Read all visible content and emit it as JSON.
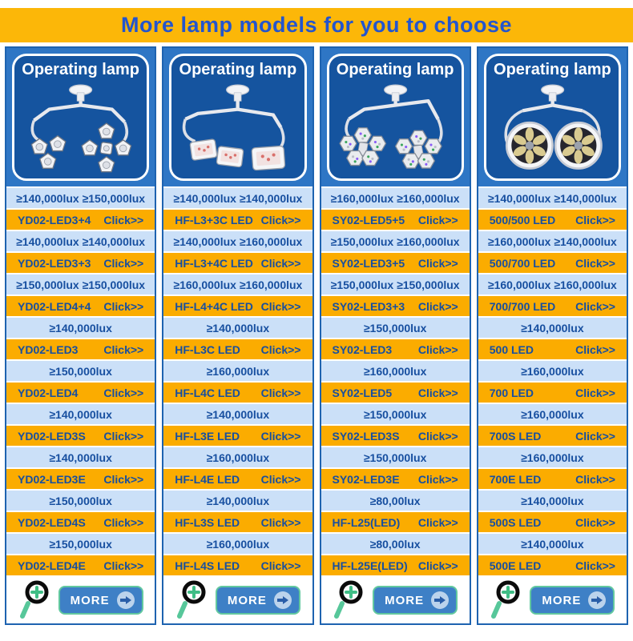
{
  "banner": {
    "title": "More lamp models for you to choose"
  },
  "colors": {
    "banner_bg": "#FCB708",
    "banner_text": "#2355CE",
    "row_orange": "#FBAC00",
    "row_light_blue": "#CBE0F8",
    "row_text_blue": "#174FA0",
    "panel_dark_blue": "#15549F",
    "panel_frame_blue": "#2E76C5",
    "card_border_blue": "#1E63B0",
    "more_button_bg": "#3E80C6",
    "more_button_border": "#62C89F"
  },
  "icons": {
    "magnifier": "magnifier-plus-icon",
    "more_arrow": "arrow-right-icon"
  },
  "columns": [
    {
      "header": "Operating lamp",
      "illustration": "dual-pentagon-head-lamp-icon",
      "more_label": "MORE",
      "rows": [
        {
          "type": "spec",
          "text": "≥140,000lux ≥150,000lux"
        },
        {
          "type": "model",
          "model": "YD02-LED3+4",
          "link": "Click>>"
        },
        {
          "type": "spec",
          "text": "≥140,000lux ≥140,000lux"
        },
        {
          "type": "model",
          "model": "YD02-LED3+3",
          "link": "Click>>"
        },
        {
          "type": "spec",
          "text": "≥150,000lux ≥150,000lux"
        },
        {
          "type": "model",
          "model": "YD02-LED4+4",
          "link": "Click>>"
        },
        {
          "type": "spec",
          "text": "≥140,000lux"
        },
        {
          "type": "model",
          "model": "YD02-LED3",
          "link": "Click>>"
        },
        {
          "type": "spec",
          "text": "≥150,000lux"
        },
        {
          "type": "model",
          "model": "YD02-LED4",
          "link": "Click>>"
        },
        {
          "type": "spec",
          "text": "≥140,000lux"
        },
        {
          "type": "model",
          "model": "YD02-LED3S",
          "link": "Click>>"
        },
        {
          "type": "spec",
          "text": "≥140,000lux"
        },
        {
          "type": "model",
          "model": "YD02-LED3E",
          "link": "Click>>"
        },
        {
          "type": "spec",
          "text": "≥150,000lux"
        },
        {
          "type": "model",
          "model": "YD02-LED4S",
          "link": "Click>>"
        },
        {
          "type": "spec",
          "text": "≥150,000lux"
        },
        {
          "type": "model",
          "model": "YD02-LED4E",
          "link": "Click>>"
        }
      ]
    },
    {
      "header": "Operating lamp",
      "illustration": "dual-square-head-lamp-icon",
      "more_label": "MORE",
      "rows": [
        {
          "type": "spec",
          "text": "≥140,000lux ≥140,000lux"
        },
        {
          "type": "model",
          "model": "HF-L3+3C LED",
          "link": "Click>>"
        },
        {
          "type": "spec",
          "text": "≥140,000lux ≥160,000lux"
        },
        {
          "type": "model",
          "model": "HF-L3+4C LED",
          "link": "Click>>"
        },
        {
          "type": "spec",
          "text": "≥160,000lux ≥160,000lux"
        },
        {
          "type": "model",
          "model": "HF-L4+4C LED",
          "link": "Click>>"
        },
        {
          "type": "spec",
          "text": "≥140,000lux"
        },
        {
          "type": "model",
          "model": "HF-L3C LED",
          "link": "Click>>"
        },
        {
          "type": "spec",
          "text": "≥160,000lux"
        },
        {
          "type": "model",
          "model": "HF-L4C LED",
          "link": "Click>>"
        },
        {
          "type": "spec",
          "text": "≥140,000lux"
        },
        {
          "type": "model",
          "model": "HF-L3E LED",
          "link": "Click>>"
        },
        {
          "type": "spec",
          "text": "≥160,000lux"
        },
        {
          "type": "model",
          "model": "HF-L4E LED",
          "link": "Click>>"
        },
        {
          "type": "spec",
          "text": "≥140,000lux"
        },
        {
          "type": "model",
          "model": "HF-L3S LED",
          "link": "Click>>"
        },
        {
          "type": "spec",
          "text": "≥160,000lux"
        },
        {
          "type": "model",
          "model": "HF-L4S LED",
          "link": "Click>>"
        }
      ]
    },
    {
      "header": "Operating lamp",
      "illustration": "dual-hexagon-cluster-lamp-icon",
      "more_label": "MORE",
      "rows": [
        {
          "type": "spec",
          "text": "≥160,000lux ≥160,000lux"
        },
        {
          "type": "model",
          "model": "SY02-LED5+5",
          "link": "Click>>"
        },
        {
          "type": "spec",
          "text": "≥150,000lux ≥160,000lux"
        },
        {
          "type": "model",
          "model": "SY02-LED3+5",
          "link": "Click>>"
        },
        {
          "type": "spec",
          "text": "≥150,000lux ≥150,000lux"
        },
        {
          "type": "model",
          "model": "SY02-LED3+3",
          "link": "Click>>"
        },
        {
          "type": "spec",
          "text": "≥150,000lux"
        },
        {
          "type": "model",
          "model": "SY02-LED3",
          "link": "Click>>"
        },
        {
          "type": "spec",
          "text": "≥160,000lux"
        },
        {
          "type": "model",
          "model": "SY02-LED5",
          "link": "Click>>"
        },
        {
          "type": "spec",
          "text": "≥150,000lux"
        },
        {
          "type": "model",
          "model": "SY02-LED3S",
          "link": "Click>>"
        },
        {
          "type": "spec",
          "text": "≥150,000lux"
        },
        {
          "type": "model",
          "model": "SY02-LED3E",
          "link": "Click>>"
        },
        {
          "type": "spec",
          "text": "≥80,00lux"
        },
        {
          "type": "model",
          "model": "HF-L25(LED)",
          "link": "Click>>"
        },
        {
          "type": "spec",
          "text": "≥80,00lux"
        },
        {
          "type": "model",
          "model": "HF-L25E(LED)",
          "link": "Click>>"
        }
      ]
    },
    {
      "header": "Operating lamp",
      "illustration": "dual-round-dome-lamp-icon",
      "more_label": "MORE",
      "rows": [
        {
          "type": "spec",
          "text": "≥140,000lux ≥140,000lux"
        },
        {
          "type": "model",
          "model": "500/500 LED",
          "link": "Click>>"
        },
        {
          "type": "spec",
          "text": "≥160,000lux ≥140,000lux"
        },
        {
          "type": "model",
          "model": "500/700 LED",
          "link": "Click>>"
        },
        {
          "type": "spec",
          "text": "≥160,000lux ≥160,000lux"
        },
        {
          "type": "model",
          "model": "700/700 LED",
          "link": "Click>>"
        },
        {
          "type": "spec",
          "text": "≥140,000lux"
        },
        {
          "type": "model",
          "model": "500 LED",
          "link": "Click>>"
        },
        {
          "type": "spec",
          "text": "≥160,000lux"
        },
        {
          "type": "model",
          "model": "700 LED",
          "link": "Click>>"
        },
        {
          "type": "spec",
          "text": "≥160,000lux"
        },
        {
          "type": "model",
          "model": "700S LED",
          "link": "Click>>"
        },
        {
          "type": "spec",
          "text": "≥160,000lux"
        },
        {
          "type": "model",
          "model": "700E LED",
          "link": "Click>>"
        },
        {
          "type": "spec",
          "text": "≥140,000lux"
        },
        {
          "type": "model",
          "model": "500S LED",
          "link": "Click>>"
        },
        {
          "type": "spec",
          "text": "≥140,000lux"
        },
        {
          "type": "model",
          "model": "500E LED",
          "link": "Click>>"
        }
      ]
    }
  ]
}
